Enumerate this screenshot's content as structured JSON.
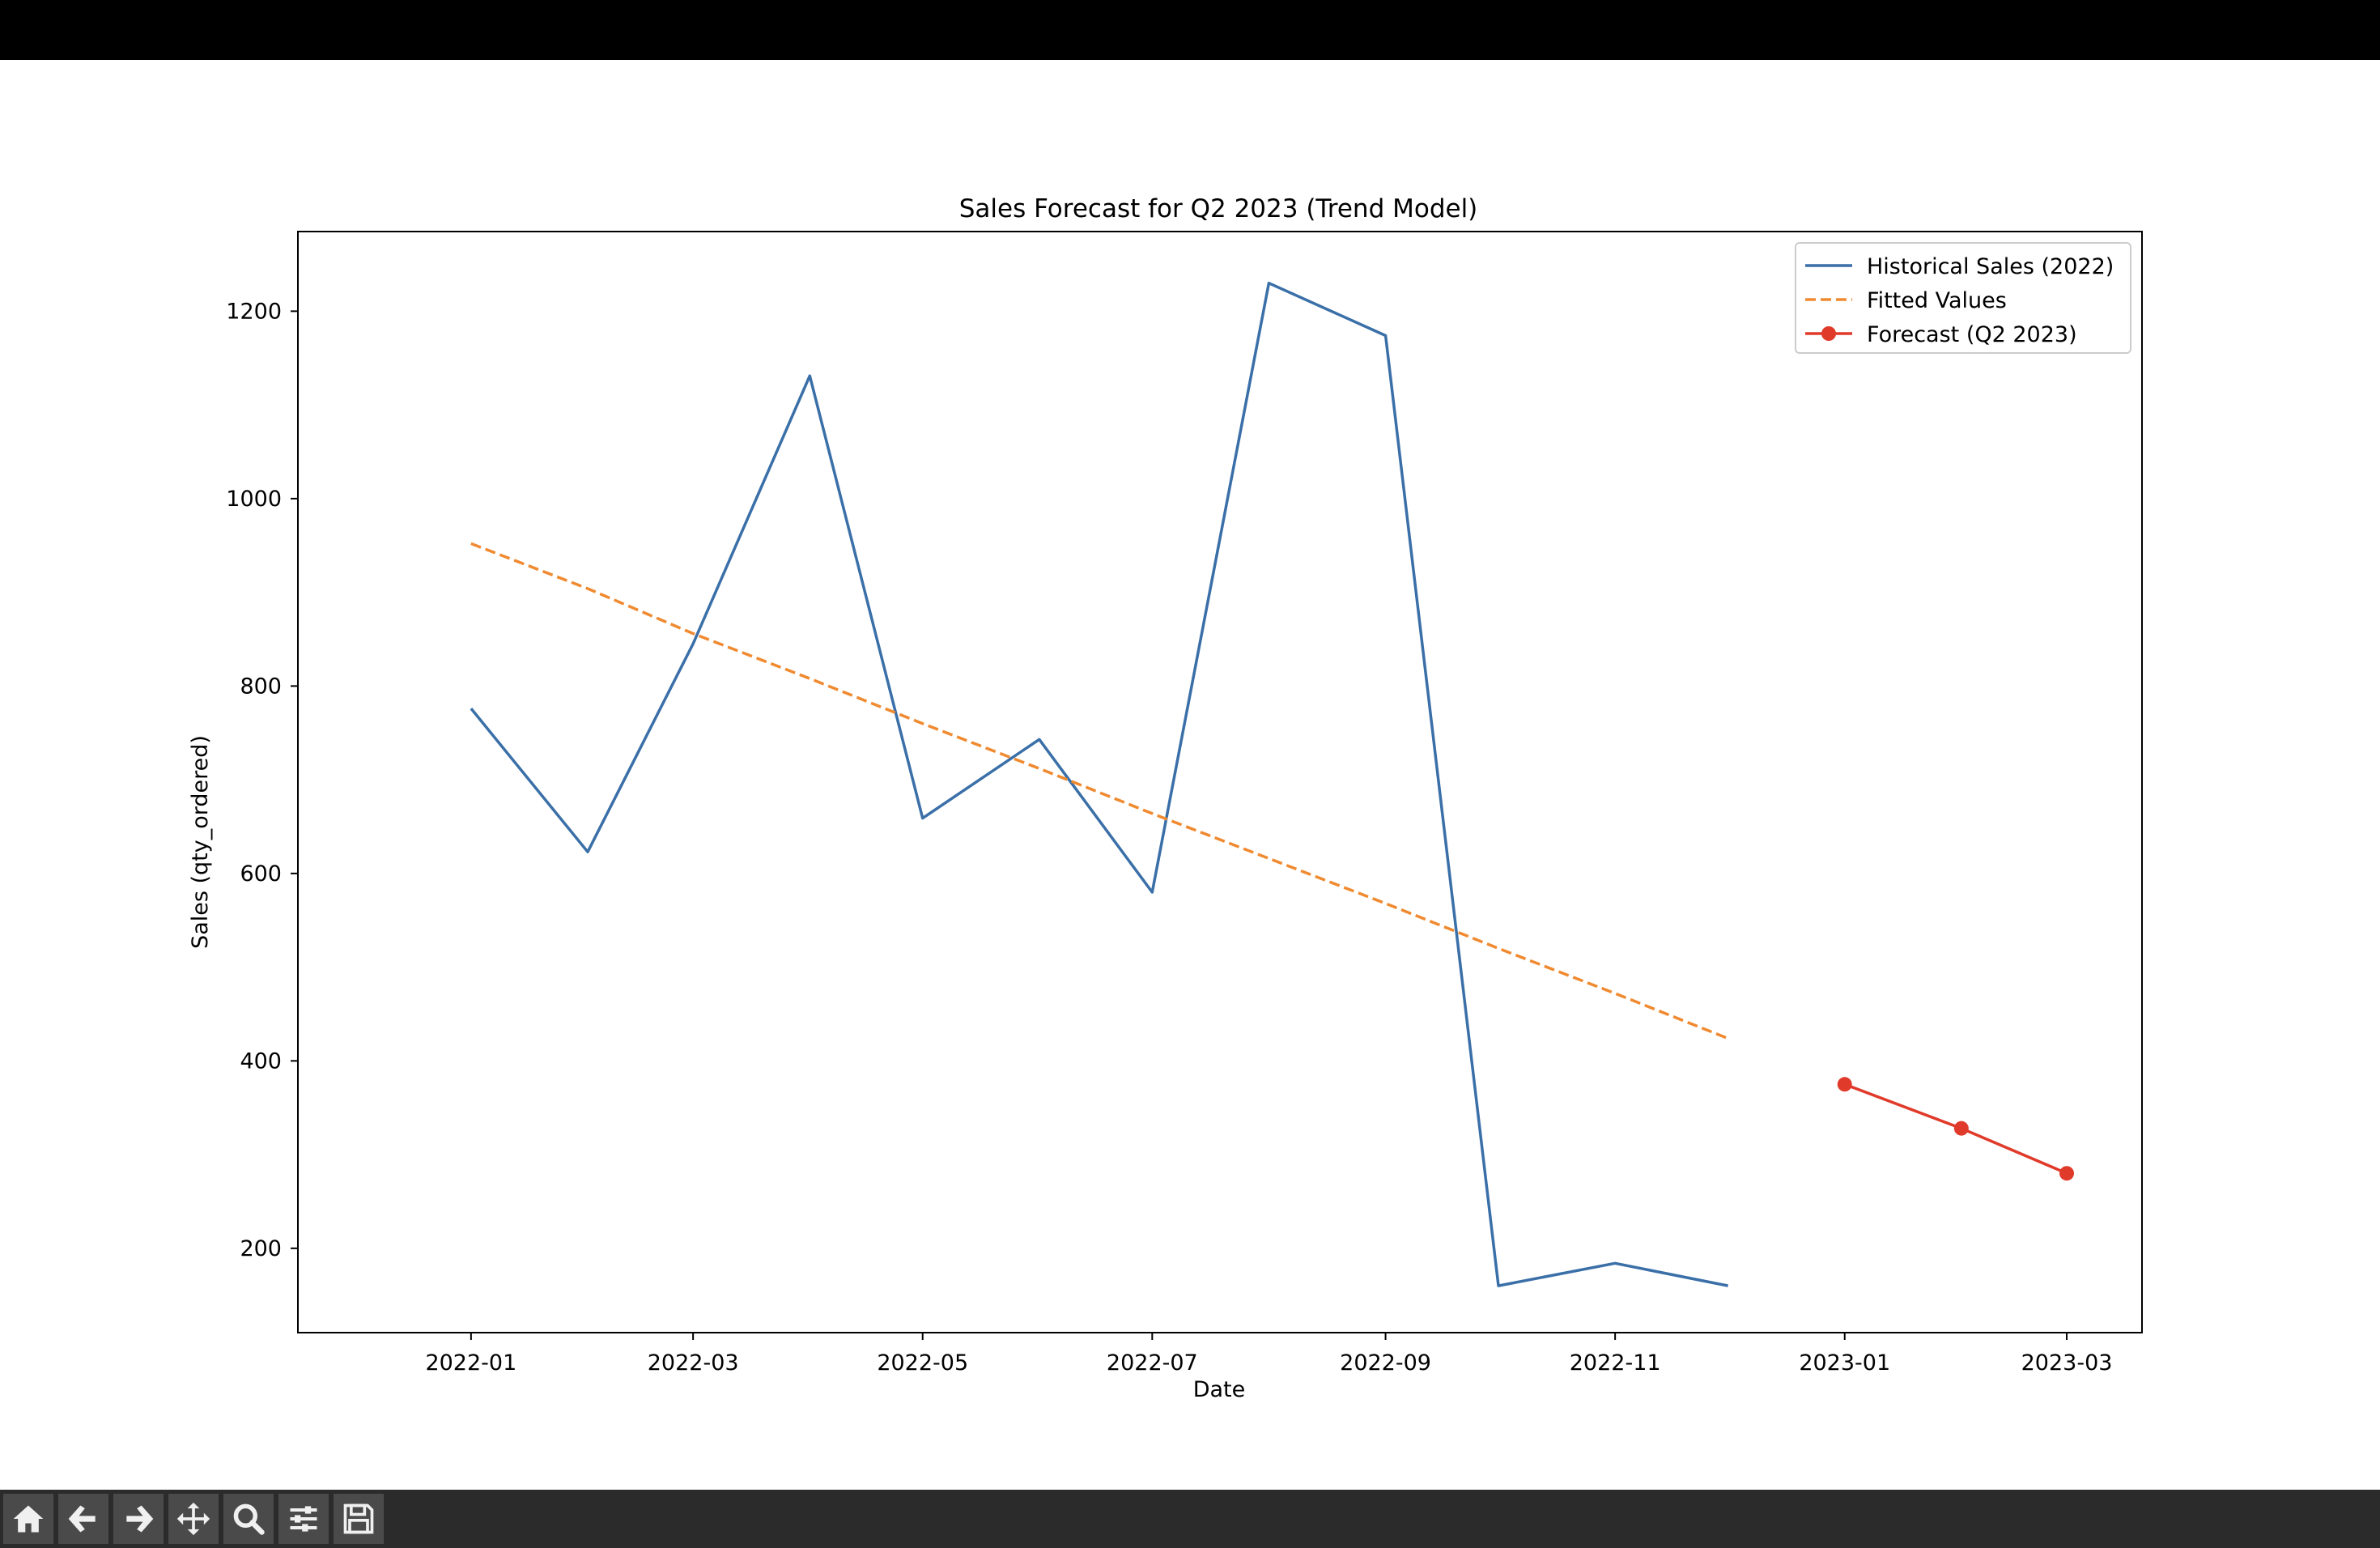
{
  "window": {},
  "toolbar": {
    "buttons": [
      {
        "name": "home-button",
        "icon": "home-icon"
      },
      {
        "name": "back-button",
        "icon": "arrow-left-icon"
      },
      {
        "name": "forward-button",
        "icon": "arrow-right-icon"
      },
      {
        "name": "pan-button",
        "icon": "move-icon"
      },
      {
        "name": "zoom-button",
        "icon": "search-icon"
      },
      {
        "name": "configure-subplots-button",
        "icon": "sliders-icon"
      },
      {
        "name": "save-button",
        "icon": "save-icon"
      }
    ]
  },
  "chart_data": {
    "type": "line",
    "title": "Sales Forecast for Q2 2023 (Trend Model)",
    "xlabel": "Date",
    "ylabel": "Sales (qty_ordered)",
    "xlim": [
      "2021-11-16",
      "2023-03-21"
    ],
    "ylim": [
      110,
      1285
    ],
    "yticks": [
      200,
      400,
      600,
      800,
      1000,
      1200
    ],
    "xticks": [
      "2022-01",
      "2022-03",
      "2022-05",
      "2022-07",
      "2022-09",
      "2022-11",
      "2023-01",
      "2023-03"
    ],
    "grid": false,
    "legend": "top-right",
    "series": [
      {
        "name": "Historical Sales (2022)",
        "color": "#3a6fa8",
        "style": "solid",
        "marker": "none",
        "x": [
          "2022-01-01",
          "2022-02-01",
          "2022-03-01",
          "2022-04-01",
          "2022-05-01",
          "2022-06-01",
          "2022-07-01",
          "2022-08-01",
          "2022-09-01",
          "2022-10-01",
          "2022-11-01",
          "2022-12-01"
        ],
        "values": [
          776,
          623,
          845,
          1131,
          659,
          743,
          580,
          1230,
          1174,
          160,
          184,
          160
        ]
      },
      {
        "name": "Fitted Values",
        "color": "#f08a30",
        "style": "dashed",
        "marker": "none",
        "x": [
          "2022-01-01",
          "2022-02-01",
          "2022-03-01",
          "2022-04-01",
          "2022-05-01",
          "2022-06-01",
          "2022-07-01",
          "2022-08-01",
          "2022-09-01",
          "2022-10-01",
          "2022-11-01",
          "2022-12-01"
        ],
        "values": [
          952,
          904,
          856,
          808,
          760,
          712,
          664,
          616,
          568,
          520,
          472,
          424
        ]
      },
      {
        "name": "Forecast (Q2 2023)",
        "color": "#e03a2a",
        "style": "solid",
        "marker": "circle",
        "x": [
          "2023-01-01",
          "2023-02-01",
          "2023-03-01"
        ],
        "values": [
          375,
          328,
          280
        ]
      }
    ]
  }
}
